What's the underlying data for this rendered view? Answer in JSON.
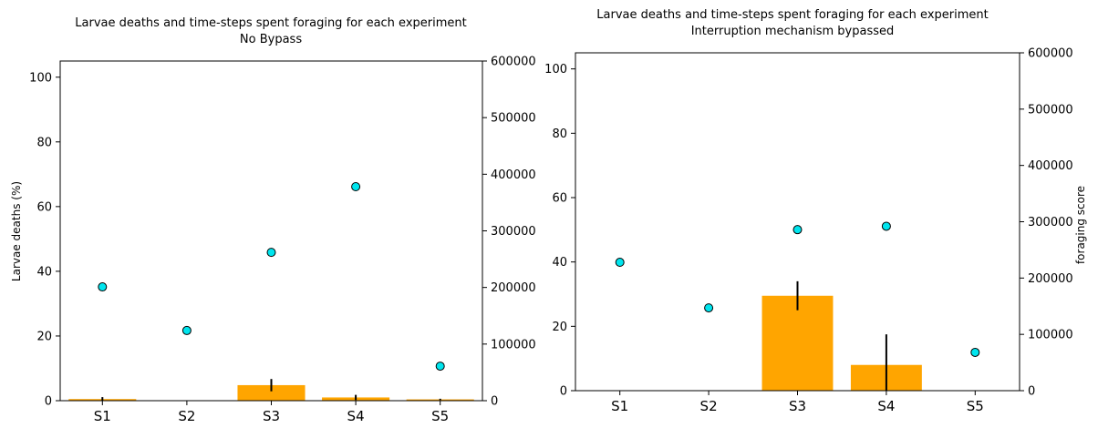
{
  "colors": {
    "bar": "#FFA500",
    "point": "#00E5EE",
    "point_edge": "#000000",
    "error": "#000000"
  },
  "chart_data": [
    {
      "type": "bar",
      "title": "Larvae deaths and time-steps spent foraging for each experiment",
      "subtitle": "No Bypass",
      "categories": [
        "S1",
        "S2",
        "S3",
        "S4",
        "S5"
      ],
      "ylabel": "Larvae deaths (%)",
      "ylabel_right": "",
      "ylim": [
        0,
        105
      ],
      "yticks": [
        0,
        20,
        40,
        60,
        80,
        100
      ],
      "y2lim": [
        0,
        600000
      ],
      "y2ticks": [
        0,
        100000,
        200000,
        300000,
        400000,
        500000,
        600000
      ],
      "series": [
        {
          "kind": "bar",
          "axis": "left",
          "values": [
            0.5,
            0,
            4.8,
            1.0,
            0.4
          ],
          "errors": [
            0.6,
            0,
            1.9,
            0.8,
            0.2
          ]
        },
        {
          "kind": "scatter",
          "axis": "right",
          "values": [
            201000,
            124000,
            262000,
            378000,
            61000
          ]
        }
      ]
    },
    {
      "type": "bar",
      "title": "Larvae deaths and time-steps spent foraging for each experiment",
      "subtitle": "Interruption mechanism bypassed",
      "categories": [
        "S1",
        "S2",
        "S3",
        "S4",
        "S5"
      ],
      "ylabel": "",
      "ylabel_right": "foraging score",
      "ylim": [
        0,
        105
      ],
      "yticks": [
        0,
        20,
        40,
        60,
        80,
        100
      ],
      "y2lim": [
        0,
        600000
      ],
      "y2ticks": [
        0,
        100000,
        200000,
        300000,
        400000,
        500000,
        600000
      ],
      "series": [
        {
          "kind": "bar",
          "axis": "left",
          "values": [
            0,
            0,
            29.5,
            8.0,
            0
          ],
          "errors": [
            0,
            0,
            4.5,
            9.5,
            0
          ]
        },
        {
          "kind": "scatter",
          "axis": "right",
          "values": [
            228000,
            147000,
            286000,
            292000,
            68000
          ]
        }
      ]
    }
  ]
}
